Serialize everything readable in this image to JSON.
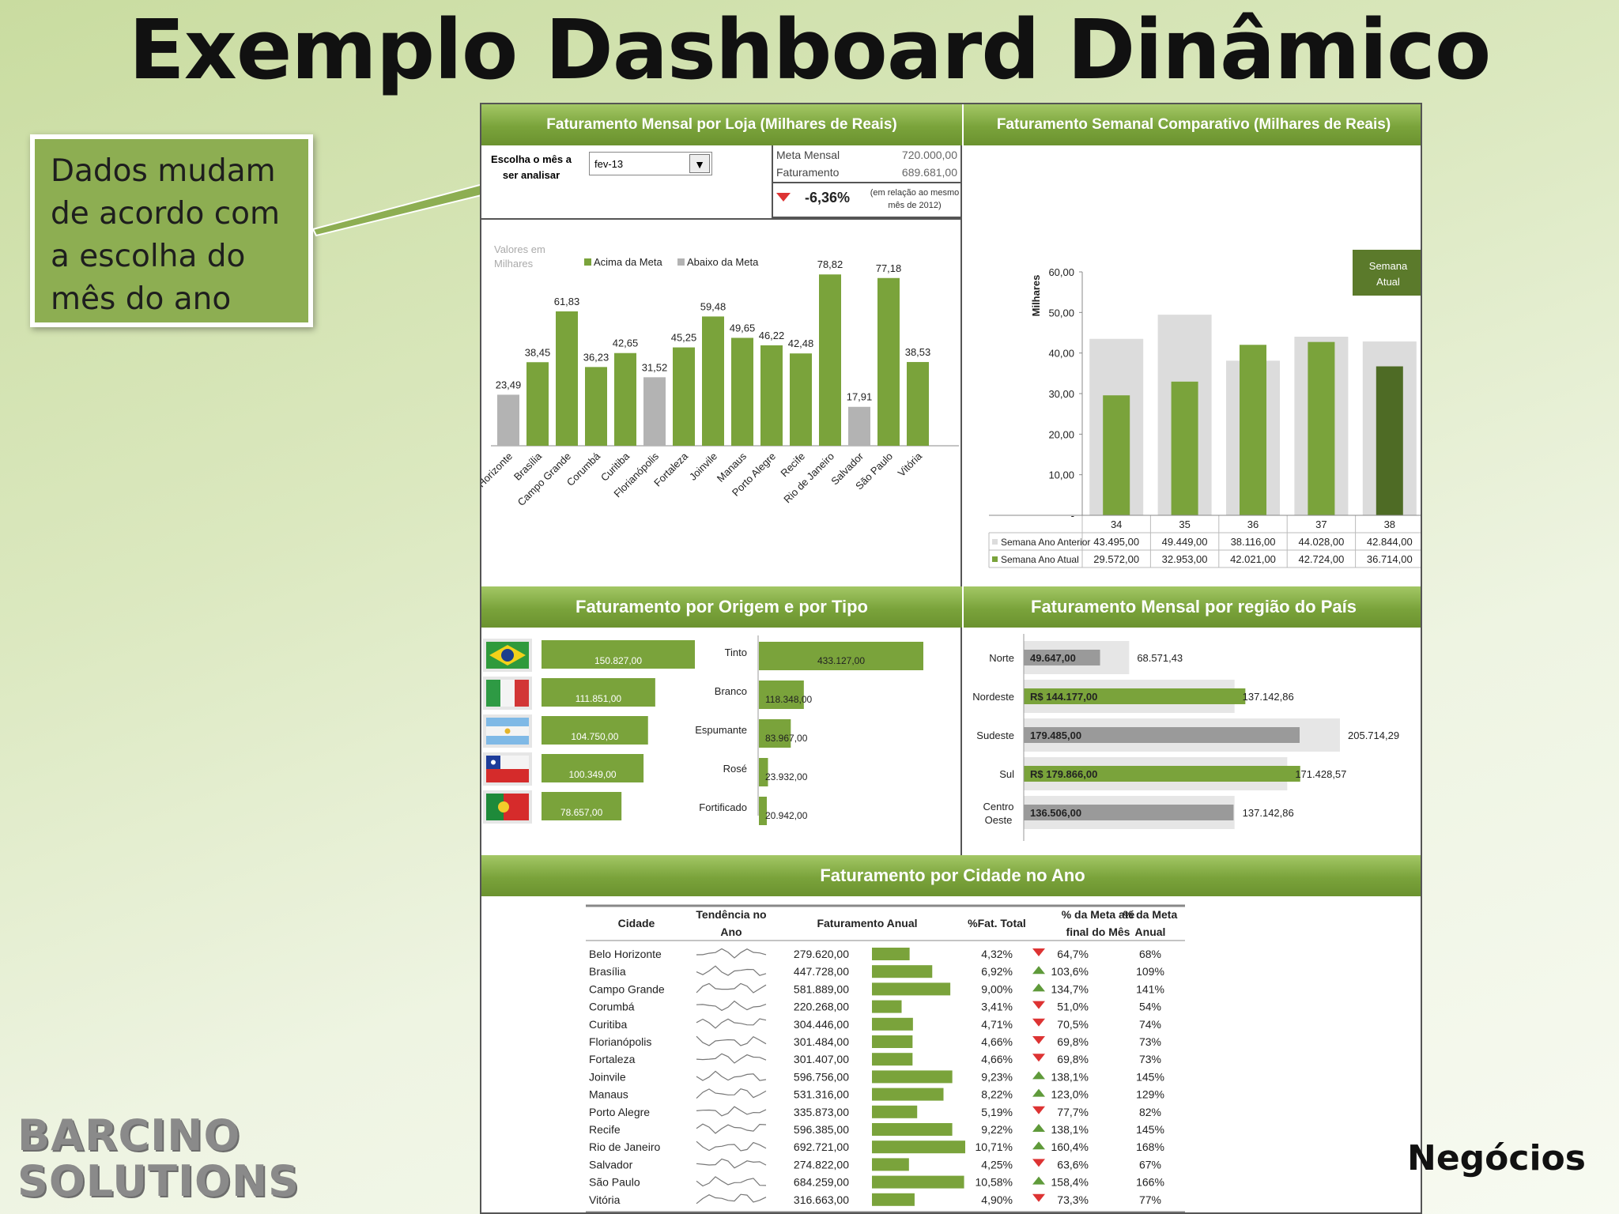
{
  "title": "Exemplo Dashboard Dinâmico",
  "callout": "Dados mudam de acordo com a escolha do mês do ano",
  "footer_right": "Negócios",
  "logo": {
    "line1": "BARCINO",
    "line2": "SOLUTIONS"
  },
  "monthly": {
    "header": "Faturamento  Mensal  por  Loja  (Milhares  de  Reais)",
    "select_label": "Escolha o mês a ser analisar",
    "select_value": "fev-13",
    "meta_label": "Meta Mensal",
    "meta_value": "720.000,00",
    "fat_label": "Faturamento",
    "fat_value": "689.681,00",
    "percent": "-6,36%",
    "percent_note": "(em relação ao mesmo mês de 2012)",
    "values_note": "Valores em Milhares",
    "legend_above": "Acima da Meta",
    "legend_below": "Abaixo da Meta"
  },
  "weekly": {
    "header": "Faturamento  Semanal  Comparativo  (Milhares  de  Reais)",
    "ylabel": "Milhares",
    "current_label": "Semana Atual",
    "row_prev_label": "Semana Ano Anterior",
    "row_curr_label": "Semana Ano Atual",
    "prev_display": [
      "43.495,00",
      "49.449,00",
      "38.116,00",
      "44.028,00",
      "42.844,00"
    ],
    "curr_display": [
      "29.572,00",
      "32.953,00",
      "42.021,00",
      "42.724,00",
      "36.714,00"
    ]
  },
  "origin": {
    "header": "Faturamento por Origem e por Tipo",
    "countries": [
      {
        "flag": "brazil-flag-icon",
        "label": "150.827,00",
        "value": 150827
      },
      {
        "flag": "italy-flag-icon",
        "label": "111.851,00",
        "value": 111851
      },
      {
        "flag": "argentina-flag-icon",
        "label": "104.750,00",
        "value": 104750
      },
      {
        "flag": "chile-flag-icon",
        "label": "100.349,00",
        "value": 100349
      },
      {
        "flag": "portugal-flag-icon",
        "label": "78.657,00",
        "value": 78657
      }
    ],
    "types": [
      {
        "name": "Tinto",
        "label": "433.127,00",
        "value": 433127
      },
      {
        "name": "Branco",
        "label": "118.348,00",
        "value": 118348
      },
      {
        "name": "Espumante",
        "label": "83.967,00",
        "value": 83967
      },
      {
        "name": "Rosé",
        "label": "23.932,00",
        "value": 23932
      },
      {
        "name": "Fortificado",
        "label": "20.942,00",
        "value": 20942
      }
    ]
  },
  "regions": {
    "header": "Faturamento Mensal por região do País",
    "items": [
      {
        "name": "Norte",
        "label": "49.647,00",
        "target_label": "68.571,43",
        "value": 49647,
        "target": 68571.43,
        "color": "#9a9a9a"
      },
      {
        "name": "Nordeste",
        "label": "R$ 144.177,00",
        "target_label": "137.142,86",
        "value": 144177,
        "target": 137142.86,
        "color": "#7aa33b"
      },
      {
        "name": "Sudeste",
        "label": "179.485,00",
        "target_label": "205.714,29",
        "value": 179485,
        "target": 205714.29,
        "color": "#9a9a9a"
      },
      {
        "name": "Sul",
        "label": "R$ 179.866,00",
        "target_label": "171.428,57",
        "value": 179866,
        "target": 171428.57,
        "color": "#7aa33b"
      },
      {
        "name": "Centro Oeste",
        "label": "136.506,00",
        "target_label": "137.142,86",
        "value": 136506,
        "target": 137142.86,
        "color": "#9a9a9a"
      }
    ]
  },
  "city_table": {
    "header": "Faturamento por Cidade no Ano",
    "col_city": "Cidade",
    "col_trend": "Tendência no Ano",
    "col_annual": "Faturamento Anual",
    "col_total": "%Fat. Total",
    "col_meta_month": "% da Meta até final do Mês",
    "col_meta_year": "% da Meta Anual",
    "rows": [
      {
        "city": "Belo Horizonte",
        "annual": "279.620,00",
        "value": 279620,
        "total": "4,32%",
        "meta": "64,7%",
        "up": false,
        "year": "68%"
      },
      {
        "city": "Brasília",
        "annual": "447.728,00",
        "value": 447728,
        "total": "6,92%",
        "meta": "103,6%",
        "up": true,
        "year": "109%"
      },
      {
        "city": "Campo Grande",
        "annual": "581.889,00",
        "value": 581889,
        "total": "9,00%",
        "meta": "134,7%",
        "up": true,
        "year": "141%"
      },
      {
        "city": "Corumbá",
        "annual": "220.268,00",
        "value": 220268,
        "total": "3,41%",
        "meta": "51,0%",
        "up": false,
        "year": "54%"
      },
      {
        "city": "Curitiba",
        "annual": "304.446,00",
        "value": 304446,
        "total": "4,71%",
        "meta": "70,5%",
        "up": false,
        "year": "74%"
      },
      {
        "city": "Florianópolis",
        "annual": "301.484,00",
        "value": 301484,
        "total": "4,66%",
        "meta": "69,8%",
        "up": false,
        "year": "73%"
      },
      {
        "city": "Fortaleza",
        "annual": "301.407,00",
        "value": 301407,
        "total": "4,66%",
        "meta": "69,8%",
        "up": false,
        "year": "73%"
      },
      {
        "city": "Joinvile",
        "annual": "596.756,00",
        "value": 596756,
        "total": "9,23%",
        "meta": "138,1%",
        "up": true,
        "year": "145%"
      },
      {
        "city": "Manaus",
        "annual": "531.316,00",
        "value": 531316,
        "total": "8,22%",
        "meta": "123,0%",
        "up": true,
        "year": "129%"
      },
      {
        "city": "Porto Alegre",
        "annual": "335.873,00",
        "value": 335873,
        "total": "5,19%",
        "meta": "77,7%",
        "up": false,
        "year": "82%"
      },
      {
        "city": "Recife",
        "annual": "596.385,00",
        "value": 596385,
        "total": "9,22%",
        "meta": "138,1%",
        "up": true,
        "year": "145%"
      },
      {
        "city": "Rio de Janeiro",
        "annual": "692.721,00",
        "value": 692721,
        "total": "10,71%",
        "meta": "160,4%",
        "up": true,
        "year": "168%"
      },
      {
        "city": "Salvador",
        "annual": "274.822,00",
        "value": 274822,
        "total": "4,25%",
        "meta": "63,6%",
        "up": false,
        "year": "67%"
      },
      {
        "city": "São Paulo",
        "annual": "684.259,00",
        "value": 684259,
        "total": "10,58%",
        "meta": "158,4%",
        "up": true,
        "year": "166%"
      },
      {
        "city": "Vitória",
        "annual": "316.663,00",
        "value": 316663,
        "total": "4,90%",
        "meta": "73,3%",
        "up": false,
        "year": "77%"
      }
    ]
  },
  "colors": {
    "green": "#7aa33b",
    "dark_green": "#4e6b25",
    "gray": "#b3b3b3",
    "light_gray": "#dcdcdc",
    "red": "#d33"
  },
  "chart_data": [
    {
      "type": "bar",
      "title": "Faturamento  Mensal  por  Loja  (Milhares  de  Reais)",
      "categories": [
        "Belo Horizonte",
        "Brasília",
        "Campo Grande",
        "Corumbá",
        "Curitiba",
        "Florianópolis",
        "Fortaleza",
        "Joinvile",
        "Manaus",
        "Porto Alegre",
        "Recife",
        "Rio de Janeiro",
        "Salvador",
        "São Paulo",
        "Vitória"
      ],
      "values": [
        23.49,
        38.45,
        61.83,
        36.23,
        42.65,
        31.52,
        45.25,
        59.48,
        49.65,
        46.22,
        42.48,
        78.82,
        17.91,
        77.18,
        38.53
      ],
      "value_labels": [
        "23,49",
        "38,45",
        "61,83",
        "36,23",
        "42,65",
        "31,52",
        "45,25",
        "59,48",
        "49,65",
        "46,22",
        "42,48",
        "78,82",
        "17,91",
        "77,18",
        "38,53"
      ],
      "above_meta": [
        false,
        true,
        true,
        true,
        true,
        false,
        true,
        true,
        true,
        true,
        true,
        true,
        false,
        true,
        true
      ],
      "legend": [
        "Acima da Meta",
        "Abaixo da Meta"
      ],
      "ylim": [
        0,
        80
      ]
    },
    {
      "type": "bar",
      "title": "Faturamento  Semanal  Comparativo  (Milhares  de  Reais)",
      "categories": [
        "34",
        "35",
        "36",
        "37",
        "38"
      ],
      "series": [
        {
          "name": "Semana Ano Anterior",
          "values": [
            43.495,
            49.449,
            38.116,
            44.028,
            42.844
          ]
        },
        {
          "name": "Semana Ano Atual",
          "values": [
            29.572,
            32.953,
            42.021,
            42.724,
            36.714
          ]
        }
      ],
      "ylabel": "Milhares",
      "yticks": [
        "-",
        "10,00",
        "20,00",
        "30,00",
        "40,00",
        "50,00",
        "60,00"
      ],
      "ylim": [
        0,
        60
      ]
    }
  ]
}
